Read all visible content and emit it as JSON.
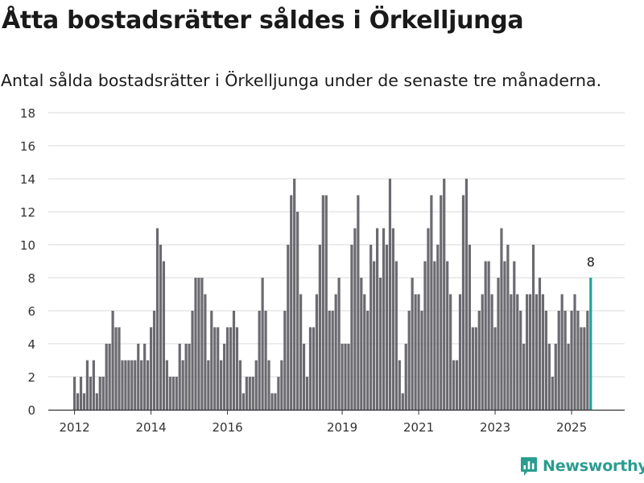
{
  "title": "Åtta bostadsrätter såldes i Örkelljunga",
  "subtitle": "Antal sålda bostadsrätter i Örkelljunga under de senaste tre månaderna.",
  "brand": {
    "name": "Newsworthy",
    "icon": "newsworthy-logo-icon"
  },
  "colors": {
    "bar": "#6b6a70",
    "highlight": "#1fa39a",
    "grid": "#d9d9d9",
    "axis": "#333333"
  },
  "chart_data": {
    "type": "bar",
    "title": "Åtta bostadsrätter såldes i Örkelljunga",
    "subtitle": "Antal sålda bostadsrätter i Örkelljunga under de senaste tre månaderna.",
    "xlabel": "",
    "ylabel": "",
    "ylim": [
      0,
      18
    ],
    "yticks": [
      "0",
      "2",
      "4",
      "6",
      "8",
      "10",
      "12",
      "14",
      "16",
      "18"
    ],
    "xticks": [
      {
        "label": "2012",
        "month": "2012-01"
      },
      {
        "label": "2014",
        "month": "2014-01"
      },
      {
        "label": "2016",
        "month": "2016-01"
      },
      {
        "label": "2019",
        "month": "2019-01"
      },
      {
        "label": "2021",
        "month": "2021-01"
      },
      {
        "label": "2023",
        "month": "2023-01"
      },
      {
        "label": "2025",
        "month": "2025-01"
      }
    ],
    "grid": true,
    "legend": "none",
    "start_month": "2012-01",
    "last_label": "8",
    "values": [
      2,
      1,
      2,
      1,
      3,
      2,
      3,
      1,
      2,
      2,
      4,
      4,
      6,
      5,
      5,
      3,
      3,
      3,
      3,
      3,
      4,
      3,
      4,
      3,
      5,
      6,
      11,
      10,
      9,
      3,
      2,
      2,
      2,
      4,
      3,
      4,
      4,
      6,
      8,
      8,
      8,
      7,
      3,
      6,
      5,
      5,
      3,
      4,
      5,
      5,
      6,
      5,
      3,
      1,
      2,
      2,
      2,
      3,
      6,
      8,
      6,
      3,
      1,
      1,
      2,
      3,
      6,
      10,
      13,
      14,
      12,
      7,
      4,
      2,
      5,
      5,
      7,
      10,
      13,
      13,
      6,
      6,
      7,
      8,
      4,
      4,
      4,
      10,
      11,
      13,
      8,
      7,
      6,
      10,
      9,
      11,
      8,
      11,
      10,
      14,
      11,
      9,
      3,
      1,
      4,
      6,
      8,
      7,
      7,
      6,
      9,
      11,
      13,
      9,
      10,
      13,
      14,
      9,
      7,
      3,
      3,
      7,
      13,
      14,
      10,
      5,
      5,
      6,
      7,
      9,
      9,
      7,
      5,
      8,
      11,
      9,
      10,
      7,
      9,
      7,
      6,
      4,
      7,
      7,
      10,
      7,
      8,
      7,
      6,
      4,
      2,
      4,
      6,
      7,
      6,
      4,
      6,
      7,
      6,
      5,
      5,
      6,
      8
    ]
  }
}
